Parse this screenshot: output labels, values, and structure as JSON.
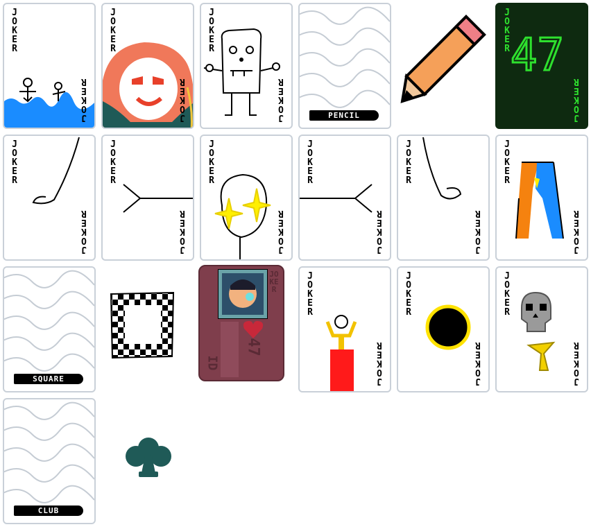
{
  "cards": {
    "joker_label": "JOKER",
    "pencil_label": "PENCIL",
    "square_label": "SQUARE",
    "club_label": "CLUB",
    "joker_47_number": "47"
  },
  "id_card": {
    "title": "JOKER",
    "number": "47",
    "footer": "ID"
  },
  "colors": {
    "card_border": "#c9d0d8",
    "wave_lines": "#c5ccd4",
    "water_blue": "#1a8cff",
    "dark_green_card": "#0e2a10",
    "neon_green": "#2ee02e",
    "club_teal": "#1f5a57",
    "id_card_maroon": "#7f3e4c"
  }
}
